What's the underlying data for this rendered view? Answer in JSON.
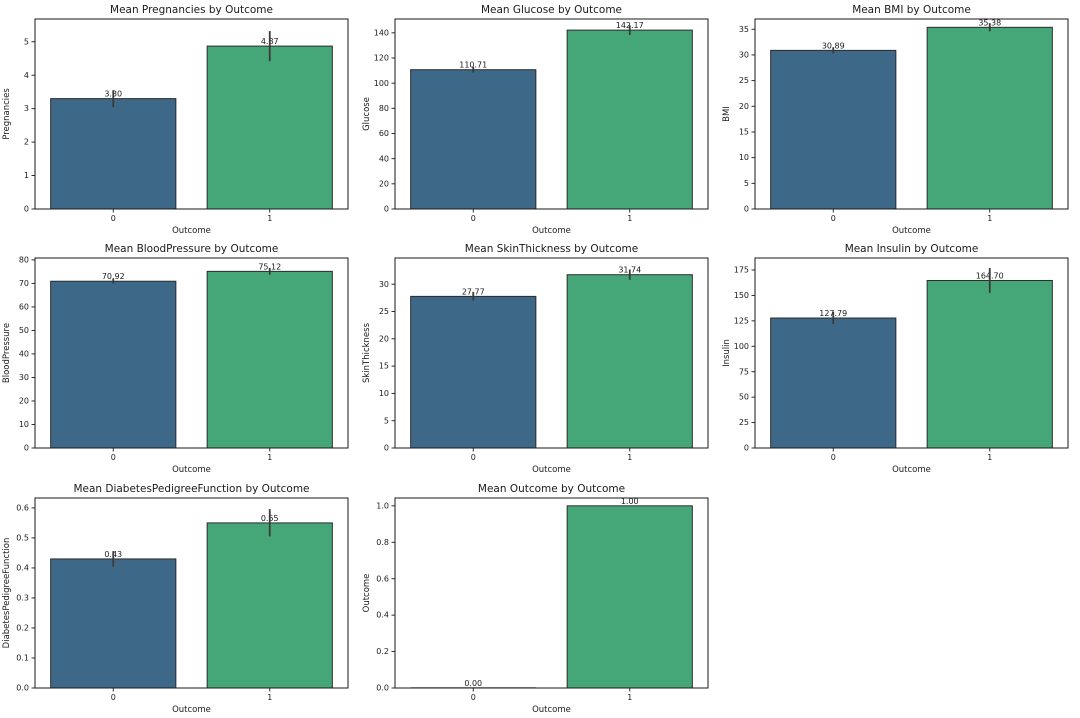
{
  "figure": {
    "background": "#ffffff",
    "text_color": "#1a1a1a",
    "spine_color": "#1a1a1a",
    "bar_colors": [
      "#3e6887",
      "#45a778"
    ],
    "bar_edge_color": "#2b2b2b",
    "error_bar_color": "#3a3a3a",
    "zero_bar_line_color": "#b4b4b4",
    "grid": {
      "rows": 3,
      "cols": 3
    }
  },
  "chart_data": [
    {
      "type": "bar",
      "title": "Mean Pregnancies by Outcome",
      "xlabel": "Outcome",
      "ylabel": "Pregnancies",
      "categories": [
        "0",
        "1"
      ],
      "values": [
        3.3,
        4.87
      ],
      "bar_labels": [
        "3.30",
        "4.87"
      ],
      "error_bars": [
        [
          3.05,
          3.55
        ],
        [
          4.42,
          5.32
        ]
      ],
      "yticks": [
        0,
        1,
        2,
        3,
        4,
        5
      ],
      "ytick_labels": [
        "0",
        "1",
        "2",
        "3",
        "4",
        "5"
      ],
      "ylim": [
        0,
        5.68
      ],
      "grid_lines": false,
      "legend": "none"
    },
    {
      "type": "bar",
      "title": "Mean Glucose by Outcome",
      "xlabel": "Outcome",
      "ylabel": "Glucose",
      "categories": [
        "0",
        "1"
      ],
      "values": [
        110.71,
        142.17
      ],
      "bar_labels": [
        "110.71",
        "142.17"
      ],
      "error_bars": [
        [
          108.4,
          113.0
        ],
        [
          138.3,
          146.0
        ]
      ],
      "yticks": [
        0,
        20,
        40,
        60,
        80,
        100,
        120,
        140
      ],
      "ytick_labels": [
        "0",
        "20",
        "40",
        "60",
        "80",
        "100",
        "120",
        "140"
      ],
      "ylim": [
        0,
        151
      ],
      "grid_lines": false,
      "legend": "none"
    },
    {
      "type": "bar",
      "title": "Mean BMI by Outcome",
      "xlabel": "Outcome",
      "ylabel": "BMI",
      "categories": [
        "0",
        "1"
      ],
      "values": [
        30.89,
        35.38
      ],
      "bar_labels": [
        "30.89",
        "35.38"
      ],
      "error_bars": [
        [
          30.3,
          31.5
        ],
        [
          34.6,
          36.2
        ]
      ],
      "yticks": [
        0,
        5,
        10,
        15,
        20,
        25,
        30,
        35
      ],
      "ytick_labels": [
        "0",
        "5",
        "10",
        "15",
        "20",
        "25",
        "30",
        "35"
      ],
      "ylim": [
        0,
        37.0
      ],
      "grid_lines": false,
      "legend": "none"
    },
    {
      "type": "bar",
      "title": "Mean BloodPressure by Outcome",
      "xlabel": "Outcome",
      "ylabel": "BloodPressure",
      "categories": [
        "0",
        "1"
      ],
      "values": [
        70.92,
        75.12
      ],
      "bar_labels": [
        "70.92",
        "75.12"
      ],
      "error_bars": [
        [
          69.9,
          72.0
        ],
        [
          73.7,
          76.6
        ]
      ],
      "yticks": [
        0,
        10,
        20,
        30,
        40,
        50,
        60,
        70,
        80
      ],
      "ytick_labels": [
        "0",
        "10",
        "20",
        "30",
        "40",
        "50",
        "60",
        "70",
        "80"
      ],
      "ylim": [
        0,
        80.8
      ],
      "grid_lines": false,
      "legend": "none"
    },
    {
      "type": "bar",
      "title": "Mean SkinThickness by Outcome",
      "xlabel": "Outcome",
      "ylabel": "SkinThickness",
      "categories": [
        "0",
        "1"
      ],
      "values": [
        27.77,
        31.74
      ],
      "bar_labels": [
        "27.77",
        "31.74"
      ],
      "error_bars": [
        [
          27.0,
          28.6
        ],
        [
          30.8,
          32.7
        ]
      ],
      "yticks": [
        0,
        5,
        10,
        15,
        20,
        25,
        30
      ],
      "ytick_labels": [
        "0",
        "5",
        "10",
        "15",
        "20",
        "25",
        "30"
      ],
      "ylim": [
        0,
        34.8
      ],
      "grid_lines": false,
      "legend": "none"
    },
    {
      "type": "bar",
      "title": "Mean Insulin by Outcome",
      "xlabel": "Outcome",
      "ylabel": "Insulin",
      "categories": [
        "0",
        "1"
      ],
      "values": [
        127.79,
        164.7
      ],
      "bar_labels": [
        "127.79",
        "164.70"
      ],
      "error_bars": [
        [
          121.8,
          133.8
        ],
        [
          152.5,
          176.9
        ]
      ],
      "yticks": [
        0,
        25,
        50,
        75,
        100,
        125,
        150,
        175
      ],
      "ytick_labels": [
        "0",
        "25",
        "50",
        "75",
        "100",
        "125",
        "150",
        "175"
      ],
      "ylim": [
        0,
        186.8
      ],
      "grid_lines": false,
      "legend": "none"
    },
    {
      "type": "bar",
      "title": "Mean DiabetesPedigreeFunction by Outcome",
      "xlabel": "Outcome",
      "ylabel": "DiabetesPedigreeFunction",
      "categories": [
        "0",
        "1"
      ],
      "values": [
        0.43,
        0.55
      ],
      "bar_labels": [
        "0.43",
        "0.55"
      ],
      "error_bars": [
        [
          0.404,
          0.456
        ],
        [
          0.505,
          0.596
        ]
      ],
      "yticks": [
        0.0,
        0.1,
        0.2,
        0.3,
        0.4,
        0.5,
        0.6
      ],
      "ytick_labels": [
        "0.0",
        "0.1",
        "0.2",
        "0.3",
        "0.4",
        "0.5",
        "0.6"
      ],
      "ylim": [
        0,
        0.633
      ],
      "grid_lines": false,
      "legend": "none"
    },
    {
      "type": "bar",
      "title": "Mean Outcome by Outcome",
      "xlabel": "Outcome",
      "ylabel": "Outcome",
      "categories": [
        "0",
        "1"
      ],
      "values": [
        0.0,
        1.0
      ],
      "bar_labels": [
        "0.00",
        "1.00"
      ],
      "error_bars": [
        [
          0.0,
          0.0
        ],
        [
          1.0,
          1.0
        ]
      ],
      "yticks": [
        0.0,
        0.2,
        0.4,
        0.6,
        0.8,
        1.0
      ],
      "ytick_labels": [
        "0.0",
        "0.2",
        "0.4",
        "0.6",
        "0.8",
        "1.0"
      ],
      "ylim": [
        0,
        1.043
      ],
      "grid_lines": false,
      "legend": "none"
    }
  ]
}
